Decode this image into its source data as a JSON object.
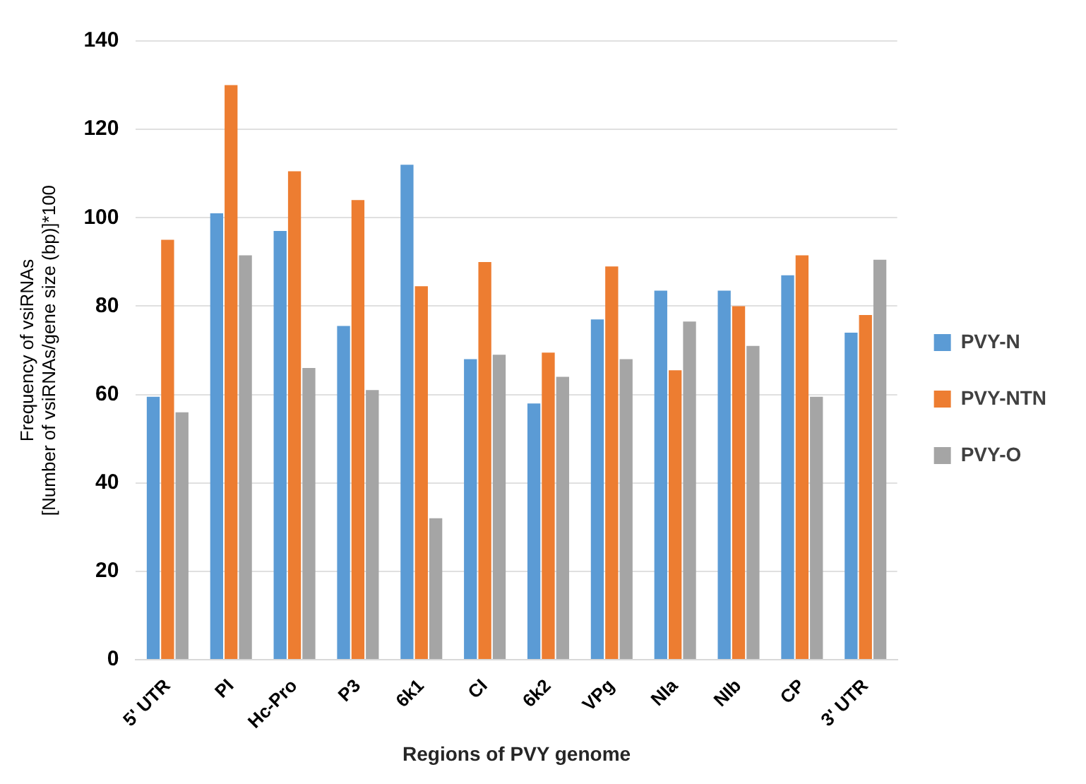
{
  "chart_data": {
    "type": "bar",
    "xlabel": "Regions of PVY genome",
    "ylabel": "Frequency of vsiRNAs\n[Number of vsiRNAs/gene size (bp)]*100",
    "categories": [
      "5' UTR",
      "PI",
      "Hc-Pro",
      "P3",
      "6k1",
      "CI",
      "6k2",
      "VPg",
      "NIa",
      "NIb",
      "CP",
      "3' UTR"
    ],
    "series": [
      {
        "name": "PVY-N",
        "color": "#5b9bd5",
        "values": [
          59.5,
          101,
          97,
          75.5,
          112,
          68,
          58,
          77,
          83.5,
          83.5,
          87,
          74
        ]
      },
      {
        "name": "PVY-NTN",
        "color": "#ed7d31",
        "values": [
          95,
          130,
          110.5,
          104,
          84.5,
          90,
          69.5,
          89,
          65.5,
          80,
          91.5,
          78
        ]
      },
      {
        "name": "PVY-O",
        "color": "#a5a5a5",
        "values": [
          56,
          91.5,
          66,
          61,
          32,
          69,
          64,
          68,
          76.5,
          71,
          59.5,
          90.5
        ]
      }
    ],
    "ylim": [
      0,
      140
    ],
    "yticks": [
      0,
      20,
      40,
      60,
      80,
      100,
      120,
      140
    ],
    "grid": "y",
    "legend": "right"
  }
}
